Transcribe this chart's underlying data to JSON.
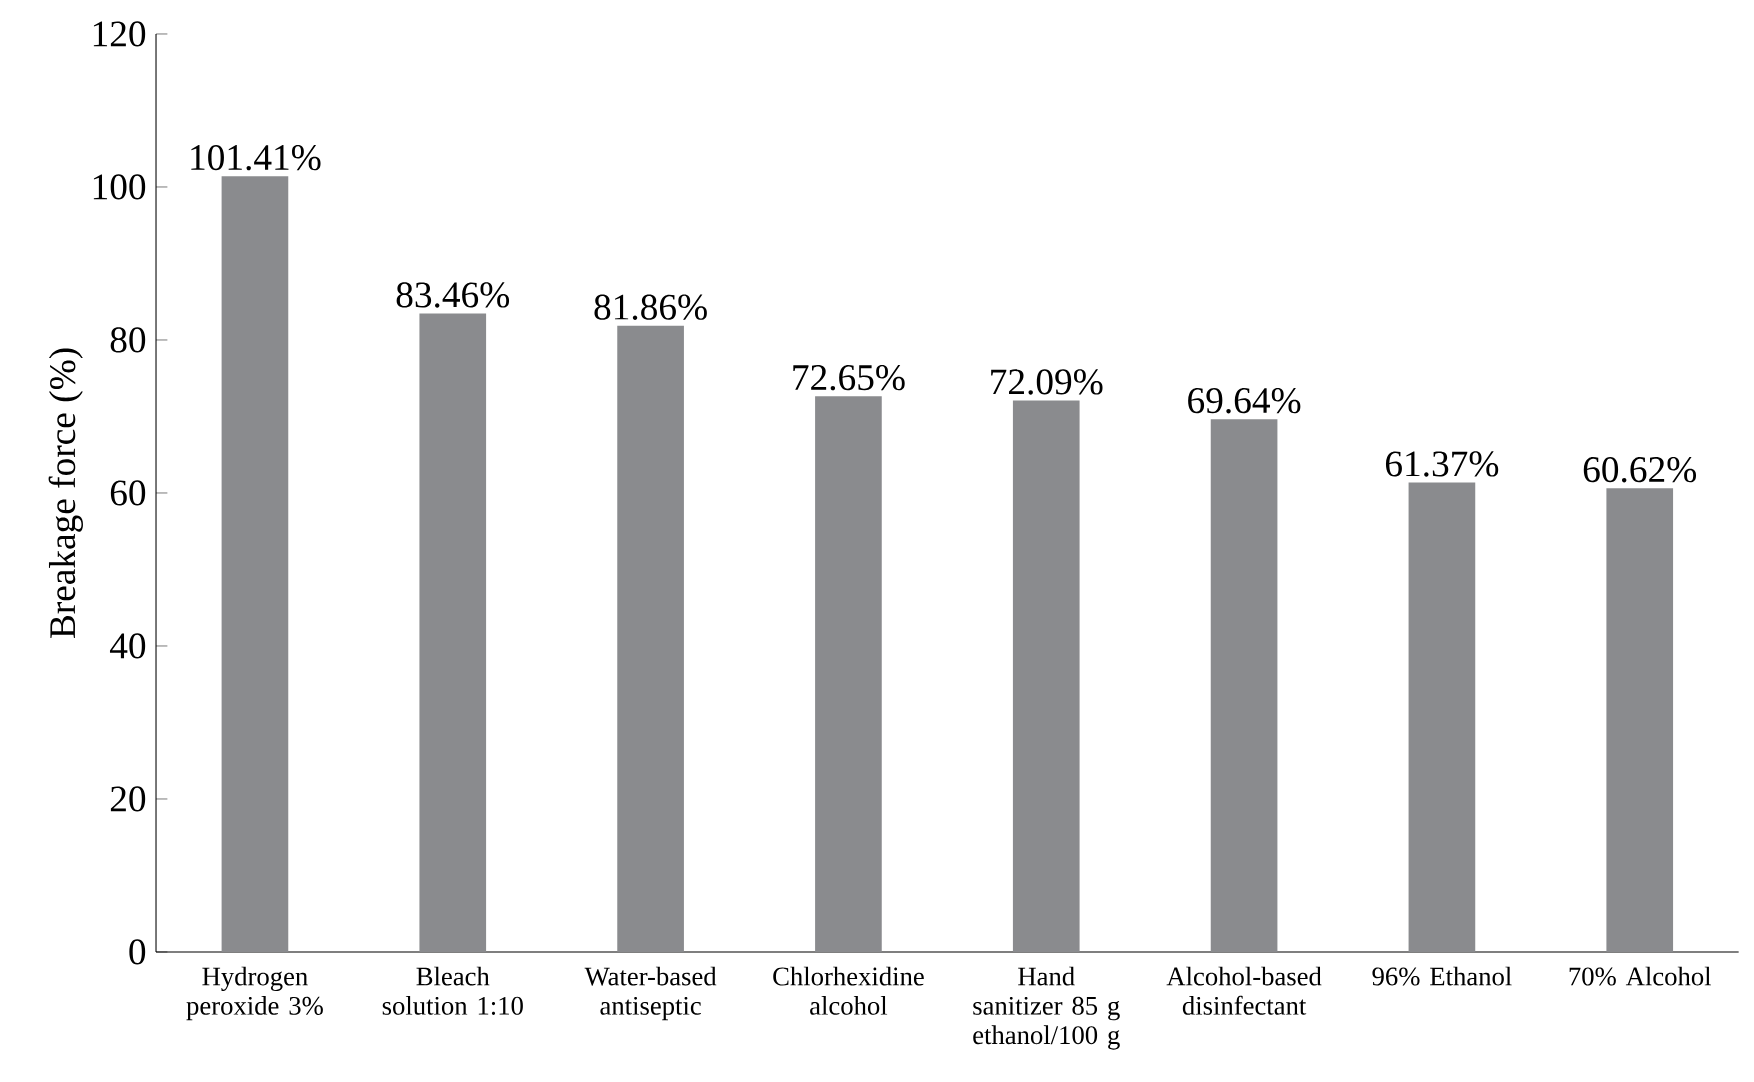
{
  "chart_data": {
    "type": "bar",
    "ylabel": "Breakage force (%)",
    "categories": [
      "Hydrogen peroxide 3%",
      "Bleach solution 1:10",
      "Water-based antiseptic",
      "Chlorhexidine alcohol",
      "Hand sanitizer 85 g ethanol/100 g",
      "Alcohol-based disinfectant",
      "96% Ethanol",
      "70% Alcohol"
    ],
    "values": [
      101.41,
      83.46,
      81.86,
      72.65,
      72.09,
      69.64,
      61.37,
      60.62
    ],
    "value_labels": [
      "101.41%",
      "83.46%",
      "81.86%",
      "72.65%",
      "72.09%",
      "69.64%",
      "61.37%",
      "60.62%"
    ],
    "color": "#8a8b8e",
    "ylim": [
      0,
      120
    ],
    "yticks": [
      0,
      20,
      40,
      60,
      80,
      100,
      120
    ],
    "grid": false
  }
}
